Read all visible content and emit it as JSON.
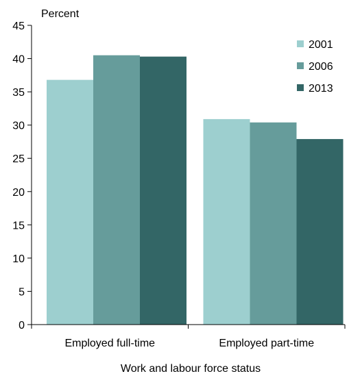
{
  "chart_data": {
    "type": "bar",
    "ylabel": "Percent",
    "xlabel": "Work and labour force status",
    "categories": [
      "Employed full-time",
      "Employed part-time"
    ],
    "series": [
      {
        "name": "2001",
        "values": [
          36.8,
          30.9
        ],
        "color": "#9dcfcf"
      },
      {
        "name": "2006",
        "values": [
          40.5,
          30.4
        ],
        "color": "#669c9b"
      },
      {
        "name": "2013",
        "values": [
          40.3,
          27.9
        ],
        "color": "#336666"
      }
    ],
    "ylim": [
      0,
      45
    ],
    "yticks": [
      0,
      5,
      10,
      15,
      20,
      25,
      30,
      35,
      40,
      45
    ],
    "grid": false,
    "legend_position": "top-right"
  }
}
